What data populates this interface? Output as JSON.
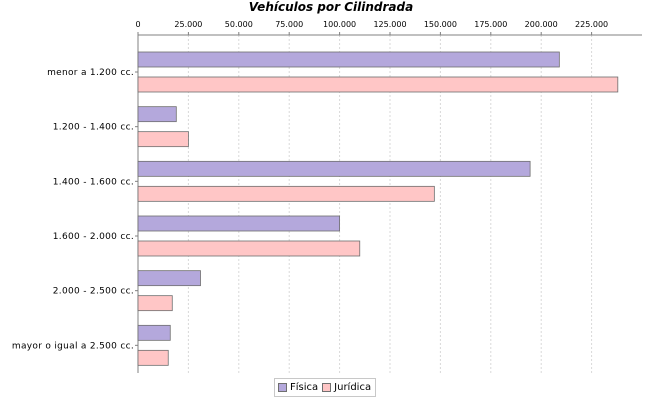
{
  "chart_data": {
    "type": "bar",
    "orientation": "horizontal",
    "title": "Vehículos por Cilindrada",
    "xlabel": "",
    "ylabel": "",
    "xlim": [
      0,
      250000
    ],
    "x_ticks": [
      0,
      25000,
      50000,
      75000,
      100000,
      125000,
      150000,
      175000,
      200000,
      225000
    ],
    "x_tick_labels": [
      "0",
      "25.000",
      "50.000",
      "75.000",
      "100.000",
      "125.000",
      "150.000",
      "175.000",
      "200.000",
      "225.000"
    ],
    "x_axis_position": "top",
    "grid": true,
    "legend_position": "bottom",
    "categories": [
      "menor a 1.200 cc.",
      "1.200 - 1.400 cc.",
      "1.400 - 1.600 cc.",
      "1.600 - 2.000 cc.",
      "2.000 - 2.500 cc.",
      "mayor o igual a 2.500 cc."
    ],
    "series": [
      {
        "name": "Física",
        "color": "#b4a8dc",
        "values": [
          209000,
          19000,
          194500,
          100000,
          31000,
          16000
        ]
      },
      {
        "name": "Jurídica",
        "color": "#ffc6c6",
        "values": [
          238000,
          25000,
          147000,
          110000,
          17000,
          15000
        ]
      }
    ]
  }
}
